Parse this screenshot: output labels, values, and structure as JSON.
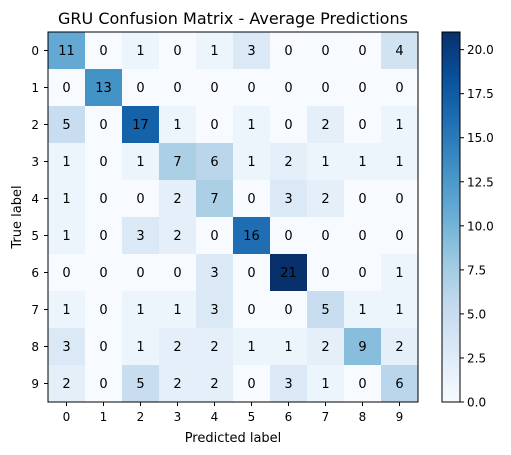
{
  "chart_data": {
    "type": "heatmap",
    "title": "GRU Confusion Matrix - Average Predictions",
    "xlabel": "Predicted label",
    "ylabel": "True label",
    "x_categories": [
      "0",
      "1",
      "2",
      "3",
      "4",
      "5",
      "6",
      "7",
      "8",
      "9"
    ],
    "y_categories": [
      "0",
      "1",
      "2",
      "3",
      "4",
      "5",
      "6",
      "7",
      "8",
      "9"
    ],
    "matrix": [
      [
        11,
        0,
        1,
        0,
        1,
        3,
        0,
        0,
        0,
        4
      ],
      [
        0,
        13,
        0,
        0,
        0,
        0,
        0,
        0,
        0,
        0
      ],
      [
        5,
        0,
        17,
        1,
        0,
        1,
        0,
        2,
        0,
        1
      ],
      [
        1,
        0,
        1,
        7,
        6,
        1,
        2,
        1,
        1,
        1
      ],
      [
        1,
        0,
        0,
        2,
        7,
        0,
        3,
        2,
        0,
        0
      ],
      [
        1,
        0,
        3,
        2,
        0,
        16,
        0,
        0,
        0,
        0
      ],
      [
        0,
        0,
        0,
        0,
        3,
        0,
        21,
        0,
        0,
        1
      ],
      [
        1,
        0,
        1,
        1,
        3,
        0,
        0,
        5,
        1,
        1
      ],
      [
        3,
        0,
        1,
        2,
        2,
        1,
        1,
        2,
        9,
        2
      ],
      [
        2,
        0,
        5,
        2,
        2,
        0,
        3,
        1,
        0,
        6
      ]
    ],
    "colormap": "Blues",
    "vmin": 0,
    "vmax": 21,
    "colorbar_ticks": [
      "0.0",
      "2.5",
      "5.0",
      "7.5",
      "10.0",
      "12.5",
      "15.0",
      "17.5",
      "20.0"
    ]
  }
}
